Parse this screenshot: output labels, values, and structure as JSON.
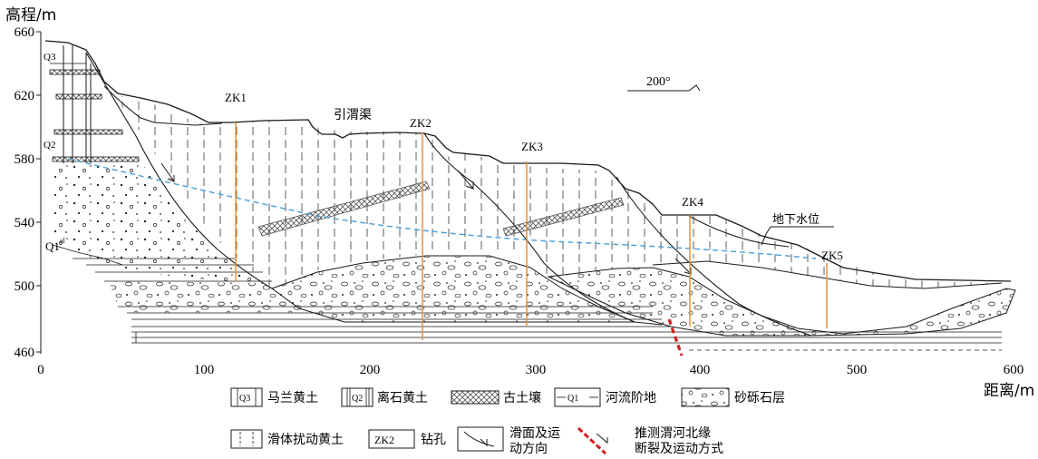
{
  "axes": {
    "y_title": "高程/m",
    "x_title": "距离/m",
    "y_ticks": [
      "660",
      "620",
      "580",
      "540",
      "500",
      "460"
    ],
    "x_ticks": [
      "0",
      "100",
      "200",
      "300",
      "400",
      "500",
      "600"
    ]
  },
  "labels": {
    "q3": "Q3",
    "q2": "Q2",
    "q1": "Q1",
    "q1_sup": "al",
    "canal": "引渭渠",
    "groundwater": "地下水位",
    "direction": "200°"
  },
  "boreholes": [
    {
      "name": "ZK1",
      "distance": 120,
      "top": 602,
      "bottom": 508
    },
    {
      "name": "ZK2",
      "distance": 232,
      "top": 597,
      "bottom": 466
    },
    {
      "name": "ZK3",
      "distance": 295,
      "top": 578,
      "bottom": 477
    },
    {
      "name": "ZK4",
      "distance": 398,
      "top": 545,
      "bottom": 477
    },
    {
      "name": "ZK5",
      "distance": 482,
      "top": 512,
      "bottom": 477
    }
  ],
  "legend": [
    {
      "symbol": "Q3",
      "label": "马兰黄土"
    },
    {
      "symbol": "Q2",
      "label": "离石黄土"
    },
    {
      "symbol": "",
      "label": "古土壤"
    },
    {
      "symbol": "Q1",
      "label": "河流阶地"
    },
    {
      "symbol": "",
      "label": "砂砾石层"
    },
    {
      "symbol": "",
      "label": "滑体扰动黄土"
    },
    {
      "symbol": "ZK2",
      "label": "钻孔"
    },
    {
      "symbol": "",
      "label": "滑面及运",
      "label2": "动方向"
    },
    {
      "symbol": "",
      "label": "推测渭河北缘",
      "label2": "断裂及运动方式"
    }
  ],
  "colors": {
    "line": "#1a1a1a",
    "borehole": "#e8913a",
    "water": "#4a9fd8",
    "fault": "#d42020",
    "paleosol": "#666666"
  }
}
